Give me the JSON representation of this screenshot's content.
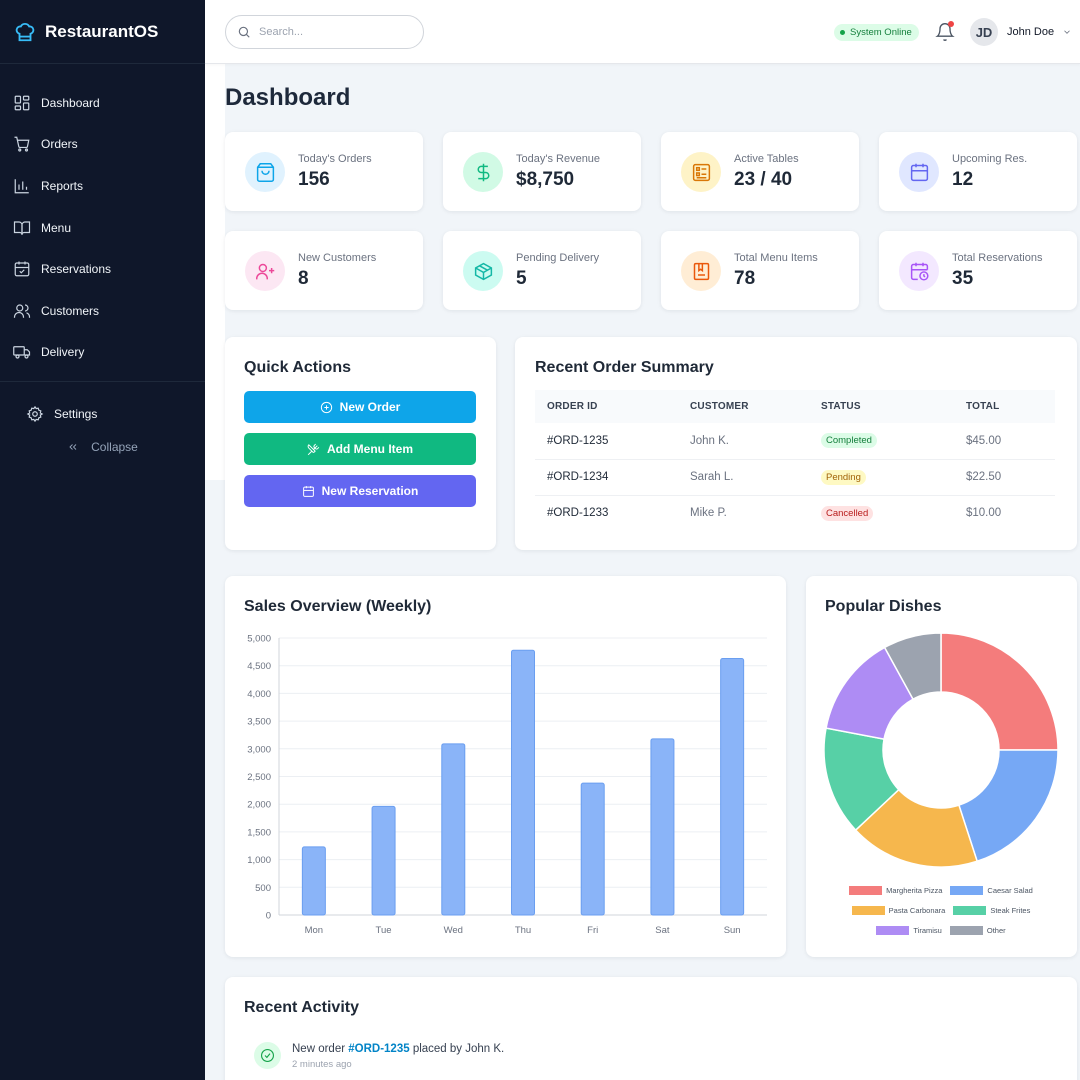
{
  "app": {
    "name": "RestaurantOS"
  },
  "sidebar": {
    "items": [
      {
        "label": "Dashboard",
        "icon": "grid-icon"
      },
      {
        "label": "Orders",
        "icon": "cart-icon"
      },
      {
        "label": "Reports",
        "icon": "bar-chart-icon"
      },
      {
        "label": "Menu",
        "icon": "book-icon"
      },
      {
        "label": "Reservations",
        "icon": "calendar-check-icon"
      },
      {
        "label": "Customers",
        "icon": "users-icon"
      },
      {
        "label": "Delivery",
        "icon": "truck-icon"
      }
    ],
    "settings_label": "Settings",
    "collapse_label": "Collapse"
  },
  "header": {
    "search_placeholder": "Search...",
    "status": "System Online",
    "user": {
      "initials": "JD",
      "name": "John Doe"
    }
  },
  "page": {
    "title": "Dashboard"
  },
  "stats": [
    {
      "label": "Today's Orders",
      "value": "156",
      "color": "#0ea5e9"
    },
    {
      "label": "Today's Revenue",
      "value": "$8,750",
      "color": "#10b981"
    },
    {
      "label": "Active Tables",
      "value": "23 / 40",
      "color": "#d97706"
    },
    {
      "label": "Upcoming Res.",
      "value": "12",
      "color": "#6366f1"
    },
    {
      "label": "New Customers",
      "value": "8",
      "color": "#ec4899"
    },
    {
      "label": "Pending Delivery",
      "value": "5",
      "color": "#14b8a6"
    },
    {
      "label": "Total Menu Items",
      "value": "78",
      "color": "#ea580c"
    },
    {
      "label": "Total Reservations",
      "value": "35",
      "color": "#a855f7"
    }
  ],
  "quick_actions": {
    "title": "Quick Actions",
    "buttons": [
      {
        "label": "New Order",
        "color": "#0ea5e9"
      },
      {
        "label": "Add Menu Item",
        "color": "#10b981"
      },
      {
        "label": "New Reservation",
        "color": "#6366f1"
      }
    ]
  },
  "recent_orders": {
    "title": "Recent Order Summary",
    "columns": [
      "ORDER ID",
      "CUSTOMER",
      "STATUS",
      "TOTAL"
    ],
    "rows": [
      {
        "id": "#ORD-1235",
        "customer": "John K.",
        "status": "Completed",
        "total": "$45.00"
      },
      {
        "id": "#ORD-1234",
        "customer": "Sarah L.",
        "status": "Pending",
        "total": "$22.50"
      },
      {
        "id": "#ORD-1233",
        "customer": "Mike P.",
        "status": "Cancelled",
        "total": "$10.00"
      }
    ]
  },
  "chart_data": [
    {
      "type": "bar",
      "title": "Sales Overview (Weekly)",
      "categories": [
        "Mon",
        "Tue",
        "Wed",
        "Thu",
        "Fri",
        "Sat",
        "Sun"
      ],
      "values": [
        1230,
        1960,
        3090,
        4780,
        2380,
        3180,
        4630
      ],
      "ylim": [
        0,
        5000
      ],
      "yticks": [
        0,
        500,
        1000,
        1500,
        2000,
        2500,
        3000,
        3500,
        4000,
        4500,
        5000
      ],
      "ytick_labels": [
        "0",
        "500",
        "1,000",
        "1,500",
        "2,000",
        "2,500",
        "3,000",
        "3,500",
        "4,000",
        "4,500",
        "5,000"
      ],
      "grid": true,
      "bar_color": "#8ab4f8"
    },
    {
      "type": "pie",
      "title": "Popular Dishes",
      "donut": true,
      "labels": [
        "Margherita Pizza",
        "Caesar Salad",
        "Pasta Carbonara",
        "Steak Frites",
        "Tiramisu",
        "Other"
      ],
      "values": [
        25,
        20,
        18,
        15,
        14,
        8
      ],
      "colors": [
        "#f47c7c",
        "#76a8f5",
        "#f6b74d",
        "#57d0a6",
        "#ae8cf4",
        "#9ca3af"
      ],
      "legend": "bottom"
    }
  ],
  "activity": {
    "title": "Recent Activity",
    "items": [
      {
        "prefix": "New order ",
        "link": "#ORD-1235",
        "suffix": " placed by John K.",
        "time": "2 minutes ago"
      }
    ]
  }
}
